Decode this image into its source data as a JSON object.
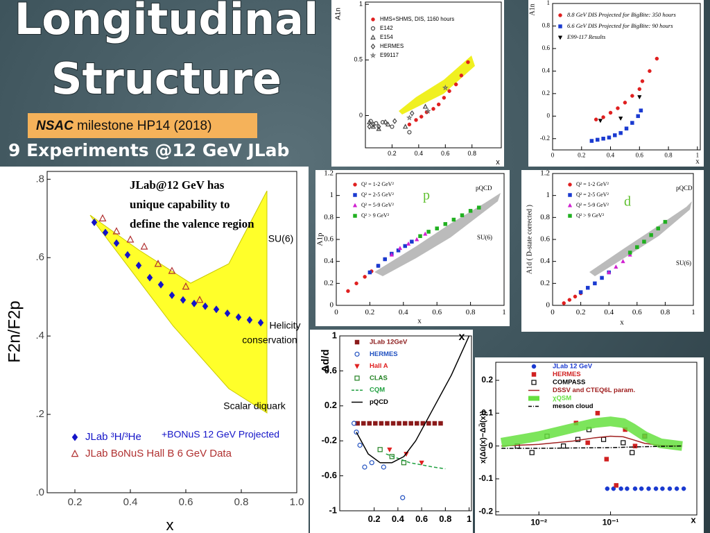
{
  "title_lines": [
    "Longitudinal",
    "Structure"
  ],
  "milestone": {
    "bold": "NSAC",
    "rest": "milestone HP14 (2018)"
  },
  "subtitle": "9 Experiments @12 GeV JLab",
  "chart_data": [
    {
      "type": "scatter",
      "xlabel": "x",
      "ylabel": "F2n/F2p",
      "xlim": [
        0.1,
        1.0
      ],
      "xticks": [
        0.2,
        0.4,
        0.6,
        0.8,
        {
          "value": 1.0,
          "label": "1.0"
        }
      ],
      "ylim": [
        0,
        0.82
      ],
      "yticks": [
        {
          "value": 0,
          "label": ".0"
        },
        {
          "value": 0.2,
          "label": ".2"
        },
        {
          "value": 0.4,
          "label": ".4"
        },
        {
          "value": 0.6,
          "label": ".6"
        },
        {
          "value": 0.8,
          "label": ".8"
        }
      ],
      "series": [
        {
          "name": "JLab ³H/³He",
          "color": "#1414c8",
          "marker": "diamond",
          "x": [
            0.27,
            0.31,
            0.35,
            0.39,
            0.43,
            0.47,
            0.51,
            0.55,
            0.59,
            0.63,
            0.67,
            0.71,
            0.75,
            0.79,
            0.83,
            0.87
          ],
          "values": [
            0.69,
            0.664,
            0.637,
            0.607,
            0.58,
            0.549,
            0.531,
            0.504,
            0.492,
            0.483,
            0.476,
            0.468,
            0.458,
            0.448,
            0.441,
            0.434
          ]
        },
        {
          "name": "JLab BoNuS Hall B 6 GeV Data",
          "color": "#b03030",
          "marker": "open-triangle",
          "x": [
            0.3,
            0.35,
            0.4,
            0.45,
            0.5,
            0.55,
            0.6,
            0.65
          ],
          "values": [
            0.7,
            0.667,
            0.646,
            0.628,
            0.584,
            0.566,
            0.526,
            0.492
          ]
        }
      ],
      "legend_note": "+BONuS 12 GeV Projected",
      "annotations": [
        "JLab@12 GeV has",
        "unique capability to",
        "define the valence region",
        "SU(6)",
        "Helicity",
        "conservation",
        "Scalar diquark"
      ]
    },
    {
      "type": "scatter",
      "xlabel": "x",
      "ylabel": "A1n",
      "xlim": [
        0,
        1.02
      ],
      "xticks": [
        0.2,
        0.4,
        0.6,
        0.8
      ],
      "ylim": [
        -0.29,
        1.02
      ],
      "yticks": [
        0,
        0.5,
        1
      ],
      "series": [
        {
          "name": "HMS+SHMS, DIS, 1160 hours",
          "color": "#e02020",
          "marker": "circle",
          "x": [
            0.33,
            0.38,
            0.42,
            0.46,
            0.51,
            0.55,
            0.59,
            0.63,
            0.68,
            0.72,
            0.77
          ],
          "values": [
            -0.08,
            -0.04,
            -0.01,
            0.03,
            0.06,
            0.1,
            0.16,
            0.22,
            0.28,
            0.36,
            0.48
          ]
        },
        {
          "name": "E142",
          "color": "#444444",
          "marker": "open-circle",
          "x": [
            0.04,
            0.08,
            0.13,
            0.2,
            0.33
          ],
          "values": [
            -0.05,
            -0.07,
            -0.06,
            -0.1,
            -0.15
          ]
        },
        {
          "name": "E154",
          "color": "#444444",
          "marker": "open-triangle",
          "x": [
            0.03,
            0.06,
            0.1,
            0.17,
            0.3,
            0.45
          ],
          "values": [
            -0.06,
            -0.1,
            -0.12,
            -0.08,
            -0.1,
            0.08
          ]
        },
        {
          "name": "HERMES",
          "color": "#444444",
          "marker": "open-diamond",
          "x": [
            0.03,
            0.06,
            0.1,
            0.15,
            0.22,
            0.35
          ],
          "values": [
            -0.1,
            -0.08,
            -0.1,
            -0.06,
            -0.05,
            0.02
          ]
        },
        {
          "name": "E99117",
          "color": "#666666",
          "marker": "star",
          "x": [
            0.33,
            0.47,
            0.6
          ],
          "values": [
            -0.02,
            0.04,
            0.25
          ]
        }
      ]
    },
    {
      "type": "scatter",
      "xlabel": "x",
      "ylabel": "A1n",
      "xlim": [
        0,
        1.02
      ],
      "xticks": [
        0,
        0.2,
        0.4,
        0.6,
        0.8,
        1
      ],
      "ylim": [
        -0.3,
        1.0
      ],
      "yticks": [
        -0.2,
        0,
        0.2,
        0.4,
        0.6,
        0.8,
        1
      ],
      "series": [
        {
          "name": "8.8 GeV DIS Projected for BigBite: 350 hours",
          "color": "#e02020",
          "marker": "circle",
          "x": [
            0.3,
            0.35,
            0.4,
            0.45,
            0.5,
            0.55,
            0.6,
            0.62,
            0.67,
            0.72
          ],
          "values": [
            -0.03,
            -0.01,
            0.03,
            0.07,
            0.12,
            0.18,
            0.24,
            0.31,
            0.4,
            0.51
          ]
        },
        {
          "name": "6.6 GeV DIS Projected for BigBite: 90 hours",
          "color": "#1a3ad0",
          "marker": "square",
          "x": [
            0.27,
            0.31,
            0.35,
            0.39,
            0.43,
            0.47,
            0.51,
            0.55,
            0.59,
            0.61
          ],
          "values": [
            -0.22,
            -0.21,
            -0.2,
            -0.19,
            -0.17,
            -0.15,
            -0.11,
            -0.06,
            0,
            0.05
          ]
        },
        {
          "name": "E99-117 Results",
          "color": "#000000",
          "marker": "inv-triangle",
          "x": [
            0.33,
            0.47,
            0.6
          ],
          "values": [
            -0.04,
            -0.02,
            0.17
          ]
        }
      ]
    },
    {
      "type": "scatter",
      "title": "p",
      "xlabel": "x",
      "ylabel": "A1p",
      "xlim": [
        0,
        1
      ],
      "xticks": [
        0,
        0.2,
        0.4,
        0.6,
        0.8,
        1
      ],
      "ylim": [
        0,
        1.2
      ],
      "yticks": [
        0,
        0.2,
        0.4,
        0.6,
        0.8,
        1,
        1.2
      ],
      "series": [
        {
          "name": "Q² = 1-2 GeV²",
          "color": "#e02020",
          "marker": "circle",
          "x": [
            0.07,
            0.12,
            0.17,
            0.21,
            0.25,
            0.29
          ],
          "values": [
            0.13,
            0.2,
            0.26,
            0.31,
            0.36,
            0.42
          ]
        },
        {
          "name": "Q² = 2-5 GeV²",
          "color": "#1a3ad0",
          "marker": "square",
          "x": [
            0.2,
            0.25,
            0.29,
            0.33,
            0.37,
            0.41,
            0.45
          ],
          "values": [
            0.3,
            0.36,
            0.42,
            0.47,
            0.5,
            0.54,
            0.58
          ]
        },
        {
          "name": "Q² = 5-9 GeV²",
          "color": "#d020d0",
          "marker": "triangle",
          "x": [
            0.33,
            0.38,
            0.43,
            0.48,
            0.53
          ],
          "values": [
            0.46,
            0.52,
            0.56,
            0.6,
            0.65
          ]
        },
        {
          "name": "Q² > 9 GeV²",
          "color": "#20b020",
          "marker": "square",
          "x": [
            0.5,
            0.55,
            0.6,
            0.65,
            0.7,
            0.75,
            0.8,
            0.85
          ],
          "values": [
            0.63,
            0.67,
            0.7,
            0.74,
            0.78,
            0.82,
            0.86,
            0.89
          ]
        }
      ],
      "annotations": [
        "pQCD",
        "SU(6)"
      ]
    },
    {
      "type": "scatter",
      "title": "d",
      "xlabel": "x",
      "ylabel": "A1d ( D-state corrected )",
      "xlim": [
        0,
        1
      ],
      "xticks": [
        0,
        0.2,
        0.4,
        0.6,
        0.8,
        1
      ],
      "ylim": [
        0,
        1.2
      ],
      "yticks": [
        0,
        0.2,
        0.4,
        0.6,
        0.8,
        1,
        1.2
      ],
      "series": [
        {
          "name": "Q² = 1-2 GeV²",
          "color": "#e02020",
          "marker": "circle",
          "x": [
            0.08,
            0.12,
            0.16,
            0.2
          ],
          "values": [
            0.02,
            0.05,
            0.08,
            0.11
          ]
        },
        {
          "name": "Q² = 2-5 GeV²",
          "color": "#1a3ad0",
          "marker": "square",
          "x": [
            0.2,
            0.25,
            0.3,
            0.35,
            0.4
          ],
          "values": [
            0.12,
            0.16,
            0.2,
            0.25,
            0.3
          ]
        },
        {
          "name": "Q² = 5-9 GeV²",
          "color": "#d020d0",
          "marker": "triangle",
          "x": [
            0.4,
            0.45,
            0.5,
            0.55
          ],
          "values": [
            0.3,
            0.35,
            0.4,
            0.46
          ]
        },
        {
          "name": "Q² > 9 GeV²",
          "color": "#20b020",
          "marker": "square",
          "x": [
            0.55,
            0.6,
            0.65,
            0.7,
            0.75,
            0.8
          ],
          "values": [
            0.48,
            0.53,
            0.58,
            0.64,
            0.7,
            0.76
          ]
        }
      ],
      "annotations": [
        "pQCD",
        "SU(6)"
      ]
    },
    {
      "type": "scatter",
      "xlabel": "x",
      "ylabel": "Δd/d",
      "xlim": [
        -0.09,
        1.02
      ],
      "xticks": [
        0.2,
        0.4,
        0.6,
        0.8,
        1
      ],
      "ylim": [
        -1,
        1
      ],
      "yticks": [
        -1,
        -0.6,
        -0.2,
        0.2,
        0.6,
        1
      ],
      "series": [
        {
          "name": "JLab 12GeV",
          "color": "#8b1a1a",
          "marker": "square",
          "x": [
            0.06,
            0.11,
            0.16,
            0.21,
            0.26,
            0.31,
            0.36,
            0.41,
            0.46,
            0.51,
            0.56,
            0.61,
            0.66,
            0.71,
            0.76
          ],
          "values": [
            0,
            0,
            0,
            0,
            0,
            0,
            0,
            0,
            0,
            0,
            0,
            0,
            0,
            0,
            0
          ]
        },
        {
          "name": "HERMES",
          "color": "#2050c0",
          "marker": "open-circle",
          "x": [
            0.03,
            0.05,
            0.08,
            0.12,
            0.18,
            0.28,
            0.44
          ],
          "values": [
            0,
            -0.1,
            -0.25,
            -0.5,
            -0.45,
            -0.5,
            -0.85
          ]
        },
        {
          "name": "Hall A",
          "color": "#e02020",
          "marker": "inv-triangle",
          "x": [
            0.33,
            0.47,
            0.6
          ],
          "values": [
            -0.3,
            -0.35,
            -0.45
          ]
        },
        {
          "name": "CLAS",
          "color": "#208020",
          "marker": "open-square",
          "x": [
            0.25,
            0.35,
            0.45
          ],
          "values": [
            -0.3,
            -0.38,
            -0.45
          ]
        },
        {
          "name": "CQM",
          "color": "#20a040",
          "line": "dashed",
          "x": [
            0.3,
            0.5,
            0.7,
            0.8
          ],
          "values": [
            -0.35,
            -0.45,
            -0.5,
            -0.52
          ]
        },
        {
          "name": "pQCD",
          "color": "#000000",
          "line": "solid",
          "x": [
            0.05,
            0.15,
            0.25,
            0.35,
            0.45,
            0.55,
            0.65,
            0.75,
            0.85,
            0.95,
            1.0
          ],
          "values": [
            -0.1,
            -0.35,
            -0.45,
            -0.45,
            -0.38,
            -0.2,
            0.05,
            0.3,
            0.55,
            0.85,
            1.0
          ]
        }
      ]
    },
    {
      "type": "scatter",
      "xlabel": "x",
      "ylabel": "x(Δū(x)−Δd̄(x))",
      "xlog": true,
      "xlim": [
        0.0025,
        1.6
      ],
      "xticks": [
        {
          "value": 0.01,
          "label": "10⁻²"
        },
        {
          "value": 0.1,
          "label": "10⁻¹"
        }
      ],
      "ylim": [
        -0.21,
        0.255
      ],
      "yticks": [
        -0.2,
        -0.1,
        0,
        0.1,
        0.2
      ],
      "series": [
        {
          "name": "JLab 12 GeV",
          "color": "#1a3ad0",
          "marker": "circle",
          "x": [
            0.09,
            0.11,
            0.14,
            0.17,
            0.22,
            0.27,
            0.34,
            0.43,
            0.53,
            0.67,
            0.84,
            1.05
          ],
          "values": [
            -0.13,
            -0.13,
            -0.13,
            -0.13,
            -0.13,
            -0.13,
            -0.13,
            -0.13,
            -0.13,
            -0.13,
            -0.13,
            -0.13
          ]
        },
        {
          "name": "HERMES",
          "color": "#d02020",
          "marker": "square",
          "x": [
            0.033,
            0.048,
            0.066,
            0.088,
            0.12,
            0.16,
            0.22,
            0.3
          ],
          "values": [
            0.07,
            0.01,
            0.1,
            -0.04,
            -0.12,
            0.05,
            0,
            0.03
          ]
        },
        {
          "name": "COMPASS",
          "color": "#000000",
          "marker": "open-square",
          "x": [
            0.005,
            0.008,
            0.013,
            0.022,
            0.035,
            0.05,
            0.08,
            0.15,
            0.2,
            0.3
          ],
          "values": [
            0,
            -0.02,
            0.03,
            0,
            0.02,
            0.05,
            0.02,
            0.01,
            -0.02,
            0.03
          ]
        },
        {
          "name": "DSSV and CTEQ6L param.",
          "color": "#a02020",
          "line": "solid",
          "x": [
            0.003,
            0.01,
            0.03,
            0.06,
            0.1,
            0.15,
            0.2,
            0.3,
            0.5,
            1
          ],
          "values": [
            0,
            0.005,
            0.015,
            0.025,
            0.03,
            0.028,
            0.02,
            0.008,
            0.002,
            0
          ]
        },
        {
          "name": "χQSM",
          "color": "#66e040",
          "line": "band",
          "x": [
            0.003,
            0.01,
            0.03,
            0.06,
            0.1,
            0.15,
            0.2,
            0.3,
            0.5,
            1
          ],
          "values": [
            0.01,
            0.03,
            0.055,
            0.07,
            0.075,
            0.07,
            0.055,
            0.03,
            0.008,
            0
          ]
        },
        {
          "name": "meson cloud",
          "color": "#000000",
          "line": "dashdot",
          "x": [
            0.003,
            0.01,
            0.03,
            0.1,
            0.3,
            1
          ],
          "values": [
            -0.007,
            -0.007,
            -0.006,
            -0.005,
            -0.002,
            0
          ]
        }
      ]
    }
  ]
}
